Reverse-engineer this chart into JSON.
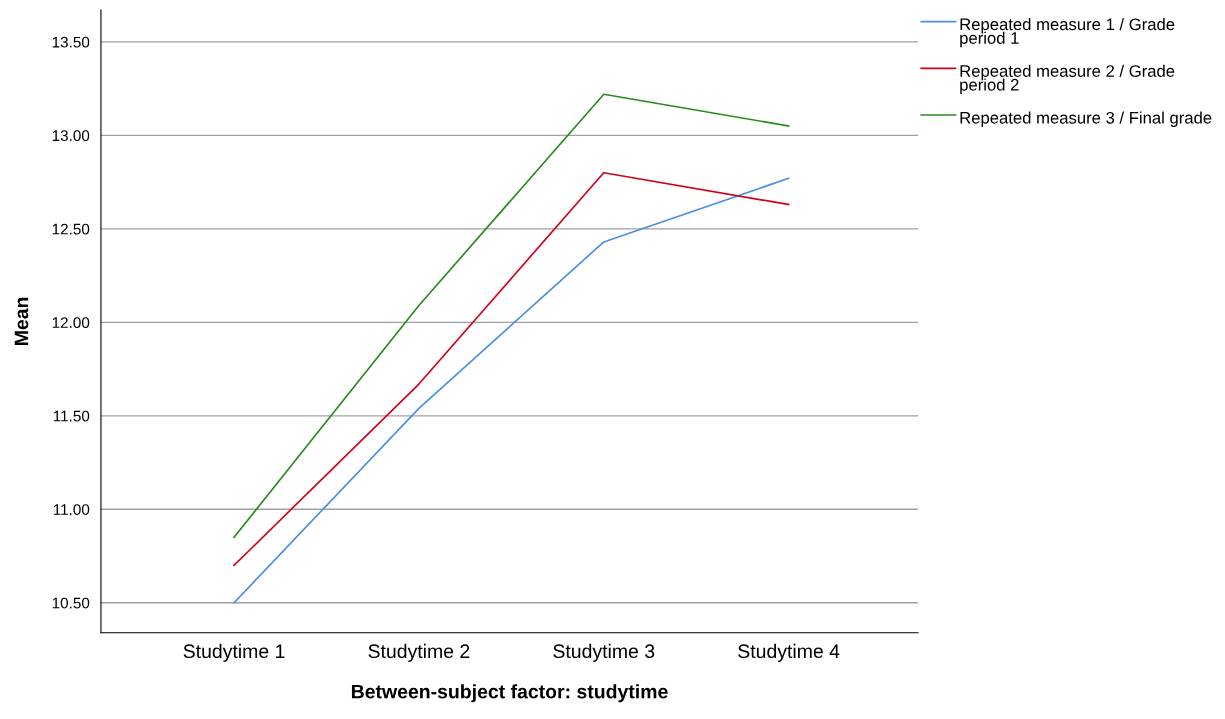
{
  "chart_data": {
    "type": "line",
    "xlabel": "Between-subject factor: studytime",
    "ylabel": "Mean",
    "categories": [
      "Studytime 1",
      "Studytime 2",
      "Studytime 3",
      "Studytime 4"
    ],
    "series": [
      {
        "name": "Repeated measure 1 / Grade period 1",
        "color": "#4a90e2",
        "values": [
          10.5,
          11.54,
          12.43,
          12.77
        ]
      },
      {
        "name": "Repeated measure 2 / Grade period 2",
        "color": "#d0021b",
        "values": [
          10.7,
          11.67,
          12.8,
          12.63
        ]
      },
      {
        "name": "Repeated measure 3 / Final grade",
        "color": "#2a8a1e",
        "values": [
          10.85,
          12.09,
          13.22,
          13.05
        ]
      }
    ],
    "ylim": [
      10.34,
      13.67
    ],
    "yticks": [
      {
        "value": 10.5,
        "label": "10.50"
      },
      {
        "value": 11,
        "label": "11.00"
      },
      {
        "value": 11.5,
        "label": "11.50"
      },
      {
        "value": 12,
        "label": "12.00"
      },
      {
        "value": 12.5,
        "label": "12.50"
      },
      {
        "value": 13,
        "label": "13.00"
      },
      {
        "value": 13.5,
        "label": "13.50"
      }
    ],
    "grid": "y",
    "legend": "top right",
    "marker": "none",
    "line_style": "solid"
  }
}
